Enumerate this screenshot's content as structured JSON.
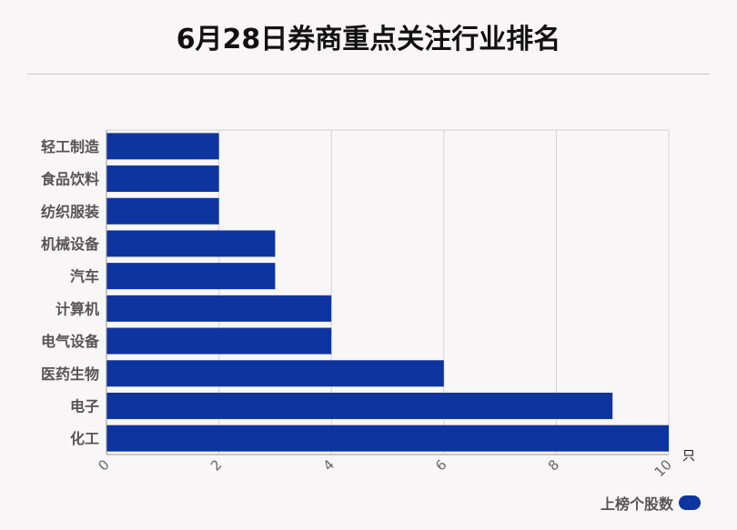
{
  "chart_data": {
    "type": "bar",
    "orientation": "horizontal",
    "title": "6月28日券商重点关注行业排名",
    "categories": [
      "轻工制造",
      "食品饮料",
      "纺织服装",
      "机械设备",
      "汽车",
      "计算机",
      "电气设备",
      "医药生物",
      "电子",
      "化工"
    ],
    "series": [
      {
        "name": "上榜个股数",
        "values": [
          2,
          2,
          2,
          3,
          3,
          4,
          4,
          6,
          9,
          10
        ]
      }
    ],
    "xlim": [
      0,
      10
    ],
    "xticks": [
      0,
      2,
      4,
      6,
      8,
      10
    ],
    "x_unit": "只",
    "bar_color": "#0e34a0",
    "grid": true,
    "legend_position": "bottom-right"
  }
}
